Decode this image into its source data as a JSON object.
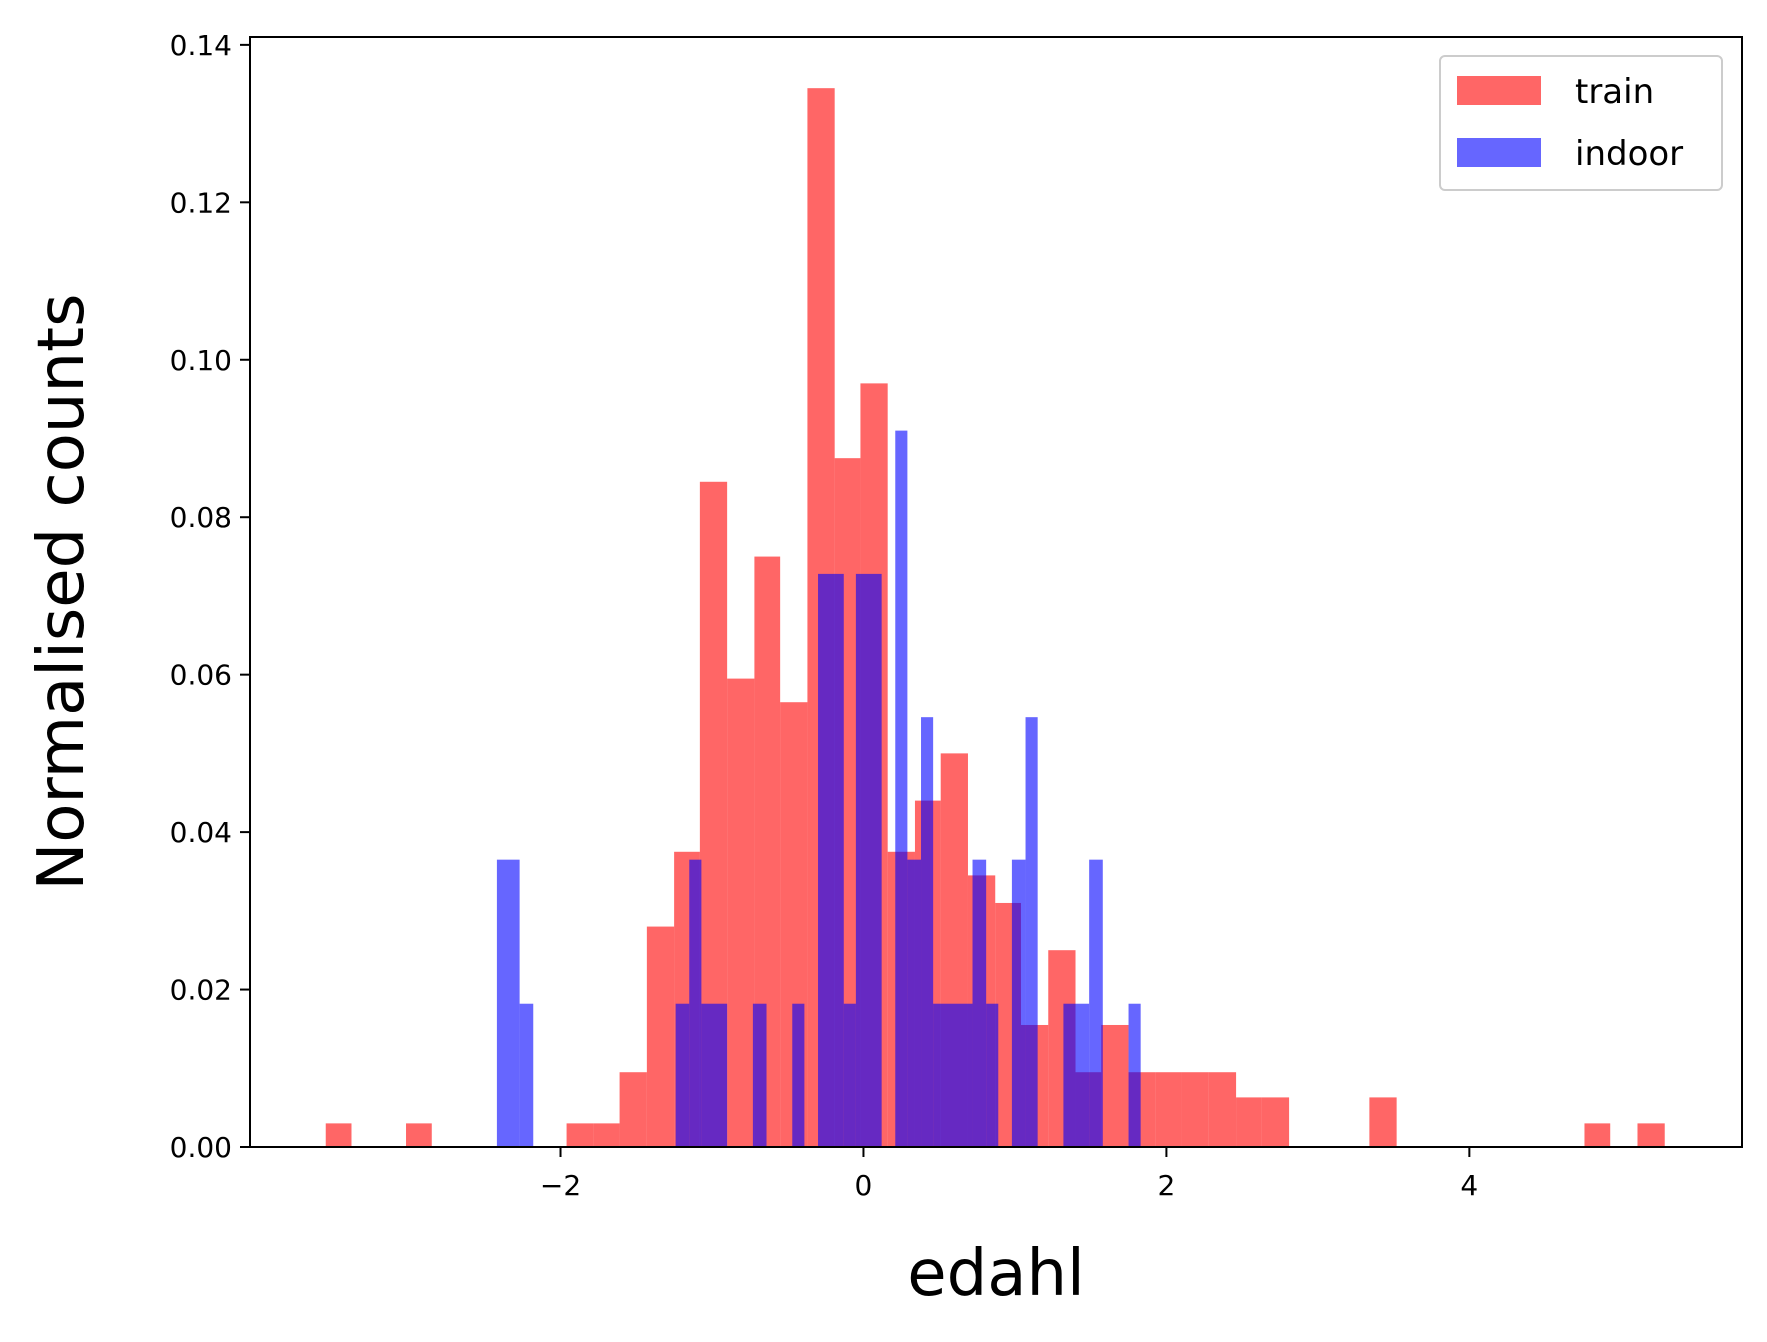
{
  "chart_data": {
    "type": "histogram",
    "xlabel": "edahl",
    "ylabel": "Normalised counts",
    "xlim": [
      -4.05,
      5.8
    ],
    "ylim": [
      0.0,
      0.141
    ],
    "xticks": [
      -2,
      0,
      2,
      4
    ],
    "xtick_labels": [
      "−2",
      "0",
      "2",
      "4"
    ],
    "yticks": [
      0.0,
      0.02,
      0.04,
      0.06,
      0.08,
      0.1,
      0.12,
      0.14
    ],
    "ytick_labels": [
      "0.00",
      "0.02",
      "0.04",
      "0.06",
      "0.08",
      "0.10",
      "0.12",
      "0.14"
    ],
    "grid": false,
    "legend_position": "top-right",
    "series": [
      {
        "name": "train",
        "color": "#ff0000",
        "opacity": 0.6,
        "bins": [
          {
            "x0": -3.55,
            "x1": -3.38,
            "y": 0.003
          },
          {
            "x0": -3.02,
            "x1": -2.85,
            "y": 0.003
          },
          {
            "x0": -1.96,
            "x1": -1.78,
            "y": 0.003
          },
          {
            "x0": -1.78,
            "x1": -1.61,
            "y": 0.003
          },
          {
            "x0": -1.61,
            "x1": -1.43,
            "y": 0.0095
          },
          {
            "x0": -1.43,
            "x1": -1.25,
            "y": 0.028
          },
          {
            "x0": -1.25,
            "x1": -1.08,
            "y": 0.0375
          },
          {
            "x0": -1.08,
            "x1": -0.9,
            "y": 0.0845
          },
          {
            "x0": -0.9,
            "x1": -0.72,
            "y": 0.0595
          },
          {
            "x0": -0.72,
            "x1": -0.55,
            "y": 0.075
          },
          {
            "x0": -0.55,
            "x1": -0.37,
            "y": 0.0565
          },
          {
            "x0": -0.37,
            "x1": -0.19,
            "y": 0.1345
          },
          {
            "x0": -0.19,
            "x1": -0.02,
            "y": 0.0875
          },
          {
            "x0": -0.02,
            "x1": 0.16,
            "y": 0.097
          },
          {
            "x0": 0.16,
            "x1": 0.34,
            "y": 0.0375
          },
          {
            "x0": 0.34,
            "x1": 0.51,
            "y": 0.044
          },
          {
            "x0": 0.51,
            "x1": 0.69,
            "y": 0.05
          },
          {
            "x0": 0.69,
            "x1": 0.87,
            "y": 0.0345
          },
          {
            "x0": 0.87,
            "x1": 1.04,
            "y": 0.031
          },
          {
            "x0": 1.04,
            "x1": 1.22,
            "y": 0.0155
          },
          {
            "x0": 1.22,
            "x1": 1.4,
            "y": 0.025
          },
          {
            "x0": 1.4,
            "x1": 1.57,
            "y": 0.0095
          },
          {
            "x0": 1.57,
            "x1": 1.75,
            "y": 0.0155
          },
          {
            "x0": 1.75,
            "x1": 1.93,
            "y": 0.0095
          },
          {
            "x0": 1.93,
            "x1": 2.1,
            "y": 0.0095
          },
          {
            "x0": 2.1,
            "x1": 2.28,
            "y": 0.0095
          },
          {
            "x0": 2.28,
            "x1": 2.46,
            "y": 0.0095
          },
          {
            "x0": 2.46,
            "x1": 2.63,
            "y": 0.0063
          },
          {
            "x0": 2.63,
            "x1": 2.81,
            "y": 0.0063
          },
          {
            "x0": 3.34,
            "x1": 3.52,
            "y": 0.0063
          },
          {
            "x0": 4.76,
            "x1": 4.93,
            "y": 0.003
          },
          {
            "x0": 5.11,
            "x1": 5.29,
            "y": 0.003
          }
        ]
      },
      {
        "name": "indoor",
        "color": "#0000ff",
        "opacity": 0.6,
        "bins": [
          {
            "x0": -2.42,
            "x1": -2.27,
            "y": 0.0365
          },
          {
            "x0": -2.27,
            "x1": -2.18,
            "y": 0.0182
          },
          {
            "x0": -1.24,
            "x1": -1.15,
            "y": 0.0182
          },
          {
            "x0": -1.15,
            "x1": -1.07,
            "y": 0.0365
          },
          {
            "x0": -1.07,
            "x1": -0.9,
            "y": 0.0182
          },
          {
            "x0": -0.73,
            "x1": -0.64,
            "y": 0.0182
          },
          {
            "x0": -0.47,
            "x1": -0.39,
            "y": 0.0182
          },
          {
            "x0": -0.3,
            "x1": -0.13,
            "y": 0.0728
          },
          {
            "x0": -0.13,
            "x1": -0.05,
            "y": 0.0182
          },
          {
            "x0": -0.05,
            "x1": 0.12,
            "y": 0.0728
          },
          {
            "x0": 0.21,
            "x1": 0.29,
            "y": 0.091
          },
          {
            "x0": 0.29,
            "x1": 0.38,
            "y": 0.0365
          },
          {
            "x0": 0.38,
            "x1": 0.46,
            "y": 0.0546
          },
          {
            "x0": 0.46,
            "x1": 0.72,
            "y": 0.0182
          },
          {
            "x0": 0.72,
            "x1": 0.81,
            "y": 0.0365
          },
          {
            "x0": 0.81,
            "x1": 0.89,
            "y": 0.0182
          },
          {
            "x0": 0.98,
            "x1": 1.07,
            "y": 0.0365
          },
          {
            "x0": 1.07,
            "x1": 1.15,
            "y": 0.0546
          },
          {
            "x0": 1.32,
            "x1": 1.49,
            "y": 0.0182
          },
          {
            "x0": 1.49,
            "x1": 1.58,
            "y": 0.0365
          },
          {
            "x0": 1.75,
            "x1": 1.83,
            "y": 0.0182
          }
        ]
      }
    ]
  }
}
